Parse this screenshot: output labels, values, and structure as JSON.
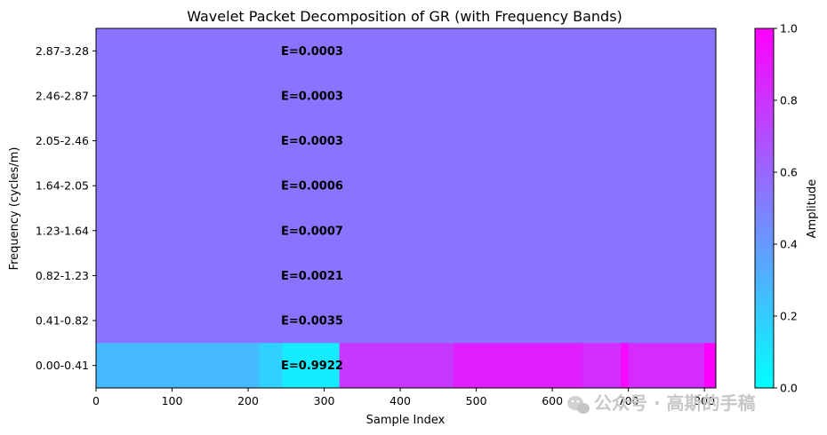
{
  "chart_data": {
    "type": "heatmap",
    "title": "Wavelet Packet Decomposition of GR (with Frequency Bands)",
    "xlabel": "Sample Index",
    "ylabel": "Frequency (cycles/m)",
    "xlim": [
      0,
      815
    ],
    "x_ticks": [
      0,
      100,
      200,
      300,
      400,
      500,
      600,
      700,
      800
    ],
    "bands": [
      "0.00-0.41",
      "0.41-0.82",
      "0.82-1.23",
      "1.23-1.64",
      "1.64-2.05",
      "2.05-2.46",
      "2.46-2.87",
      "2.87-3.28"
    ],
    "band_energy_labels": [
      "E=0.9922",
      "E=0.0035",
      "E=0.0021",
      "E=0.0007",
      "E=0.0006",
      "E=0.0003",
      "E=0.0003",
      "E=0.0003"
    ],
    "upper_band_amplitude": 0.55,
    "lowest_band_segments": [
      {
        "x": [
          0,
          215
        ],
        "amplitude": 0.27
      },
      {
        "x": [
          215,
          245
        ],
        "amplitude": 0.18
      },
      {
        "x": [
          245,
          320
        ],
        "amplitude": 0.08
      },
      {
        "x": [
          320,
          470
        ],
        "amplitude": 0.78
      },
      {
        "x": [
          470,
          640
        ],
        "amplitude": 0.88
      },
      {
        "x": [
          640,
          690
        ],
        "amplitude": 0.82
      },
      {
        "x": [
          690,
          700
        ],
        "amplitude": 0.97
      },
      {
        "x": [
          700,
          800
        ],
        "amplitude": 0.83
      },
      {
        "x": [
          800,
          815
        ],
        "amplitude": 1.0
      }
    ],
    "colorbar": {
      "label": "Amplitude",
      "colormap": "cool",
      "range": [
        0,
        1
      ],
      "ticks": [
        "0.0",
        "0.2",
        "0.4",
        "0.6",
        "0.8",
        "1.0"
      ],
      "color_low": "#00ffff",
      "color_high": "#ff00ff"
    },
    "grid": false
  },
  "watermark": "公众号 · 高斯的手稿"
}
